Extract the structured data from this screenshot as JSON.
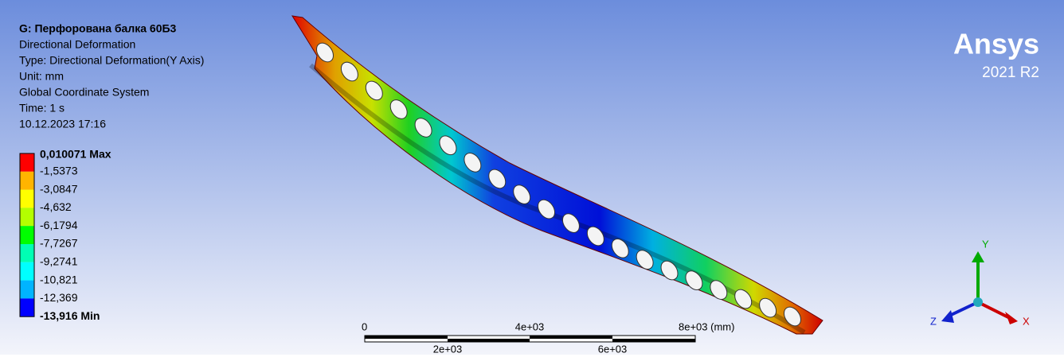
{
  "header": {
    "title": "G: Перфорована балка 60Б3",
    "lines": [
      "Directional Deformation",
      "Type: Directional Deformation(Y Axis)",
      "Unit: mm",
      "Global Coordinate System",
      "Time: 1 s",
      "10.12.2023 17:16"
    ]
  },
  "legend": {
    "bands": [
      "#ff0000",
      "#ffb400",
      "#ffff00",
      "#b4ff00",
      "#00ff00",
      "#00ffb4",
      "#00ffff",
      "#00b4ff",
      "#0000ff"
    ],
    "labels": [
      "0,010071 Max",
      "-1,5373",
      "-3,0847",
      "-4,632",
      "-6,1794",
      "-7,7267",
      "-9,2741",
      "-10,821",
      "-12,369",
      "-13,916 Min"
    ]
  },
  "scale_bar": {
    "top_labels": [
      "0",
      "4e+03",
      "8e+03 (mm)"
    ],
    "bottom_labels": [
      "2e+03",
      "6e+03"
    ]
  },
  "triad": {
    "y": "Y",
    "z": "Z",
    "x": "X"
  },
  "logo": {
    "name": "Ansys",
    "version": "2021 R2"
  }
}
